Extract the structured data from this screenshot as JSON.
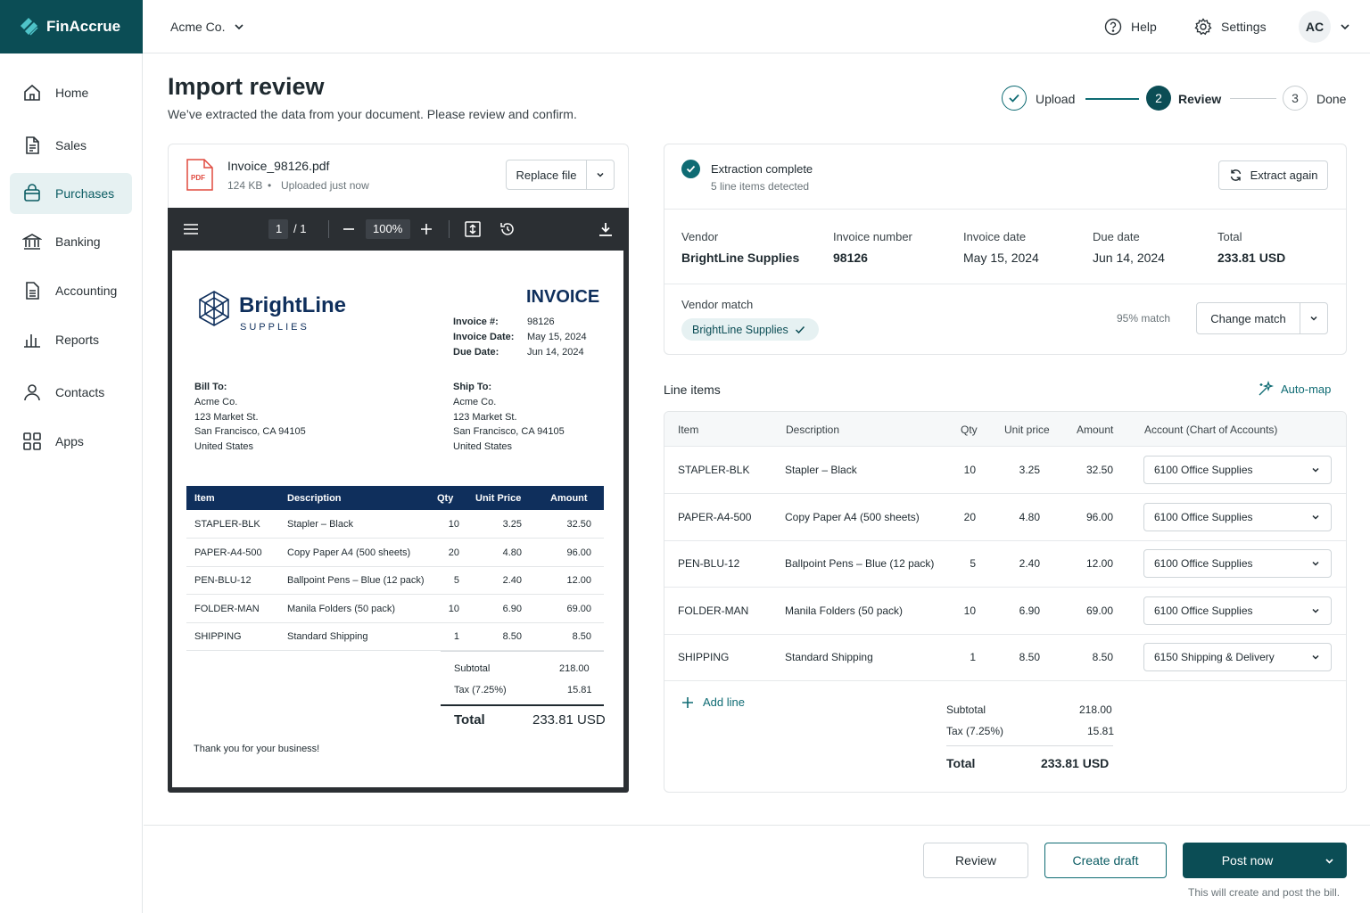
{
  "app": {
    "name": "FinAccrue"
  },
  "topbar": {
    "company": "Acme Co.",
    "help": "Help",
    "settings": "Settings",
    "avatar": "AC"
  },
  "sidebar": {
    "items": [
      {
        "label": "Home",
        "icon": "home-icon"
      },
      {
        "label": "Sales",
        "icon": "document-icon"
      },
      {
        "label": "Purchases",
        "icon": "bag-icon",
        "active": true
      },
      {
        "label": "Banking",
        "icon": "bank-icon"
      },
      {
        "label": "Accounting",
        "icon": "ledger-icon"
      },
      {
        "label": "Reports",
        "icon": "bar-chart-icon"
      },
      {
        "label": "Contacts",
        "icon": "user-icon"
      },
      {
        "label": "Apps",
        "icon": "grid-icon"
      }
    ]
  },
  "page": {
    "title": "Import review",
    "subtitle": "We’ve extracted the data from your document. Please review and confirm."
  },
  "stepper": {
    "steps": [
      {
        "label": "Upload",
        "status": "done"
      },
      {
        "number": "2",
        "label": "Review",
        "status": "current"
      },
      {
        "number": "3",
        "label": "Done",
        "status": "upcoming"
      }
    ]
  },
  "file": {
    "name": "Invoice_98126.pdf",
    "size": "124 KB",
    "separator": "•",
    "uploaded": "Uploaded just now",
    "type_badge": "PDF",
    "replace_label": "Replace file"
  },
  "viewer": {
    "page_current": "1",
    "page_total": "/ 1",
    "zoom": "100%"
  },
  "invoice_doc": {
    "brand": "BrightLine",
    "brand_sub": "SUPPLIES",
    "heading": "INVOICE",
    "meta": [
      {
        "label": "Invoice #:",
        "value": "98126"
      },
      {
        "label": "Invoice Date:",
        "value": "May 15, 2024"
      },
      {
        "label": "Due Date:",
        "value": "Jun 14, 2024"
      }
    ],
    "bill_to": {
      "label": "Bill To:",
      "lines": [
        "Acme Co.",
        "123 Market St.",
        "San Francisco, CA 94105",
        "United States"
      ]
    },
    "ship_to": {
      "label": "Ship To:",
      "lines": [
        "Acme Co.",
        "123 Market St.",
        "San Francisco, CA 94105",
        "United States"
      ]
    },
    "columns": [
      "Item",
      "Description",
      "Qty",
      "Unit Price",
      "Amount"
    ],
    "rows": [
      [
        "STAPLER-BLK",
        "Stapler – Black",
        "10",
        "3.25",
        "32.50"
      ],
      [
        "PAPER-A4-500",
        "Copy Paper A4 (500 sheets)",
        "20",
        "4.80",
        "96.00"
      ],
      [
        "PEN-BLU-12",
        "Ballpoint Pens – Blue (12 pack)",
        "5",
        "2.40",
        "12.00"
      ],
      [
        "FOLDER-MAN",
        "Manila Folders (50 pack)",
        "10",
        "6.90",
        "69.00"
      ],
      [
        "SHIPPING",
        "Standard Shipping",
        "1",
        "8.50",
        "8.50"
      ]
    ],
    "subtotal_label": "Subtotal",
    "subtotal": "218.00",
    "tax_label": "Tax (7.25%)",
    "tax": "15.81",
    "total_label": "Total",
    "total": "233.81 USD",
    "thanks": "Thank you for your business!"
  },
  "extraction": {
    "title": "Extraction complete",
    "detail": "5 line items detected",
    "extract_again": "Extract again",
    "fields": [
      {
        "label": "Vendor",
        "value": "BrightLine Supplies"
      },
      {
        "label": "Invoice number",
        "value": "98126"
      },
      {
        "label": "Invoice date",
        "value": "May 15, 2024"
      },
      {
        "label": "Due date",
        "value": "Jun 14, 2024"
      },
      {
        "label": "Total",
        "value": "233.81 USD"
      }
    ],
    "vendor_match_label": "Vendor match",
    "vendor_match_value": "BrightLine Supplies",
    "match_pct": "95% match",
    "change_match": "Change match"
  },
  "line_items": {
    "title": "Line items",
    "automap": "Auto-map",
    "columns": [
      "Item",
      "Description",
      "Qty",
      "Unit price",
      "Amount",
      "Account (Chart of Accounts)"
    ],
    "rows": [
      {
        "item": "STAPLER-BLK",
        "desc": "Stapler – Black",
        "qty": "10",
        "price": "3.25",
        "amount": "32.50",
        "account": "6100 Office Supplies"
      },
      {
        "item": "PAPER-A4-500",
        "desc": "Copy Paper A4 (500 sheets)",
        "qty": "20",
        "price": "4.80",
        "amount": "96.00",
        "account": "6100 Office Supplies"
      },
      {
        "item": "PEN-BLU-12",
        "desc": "Ballpoint Pens – Blue (12 pack)",
        "qty": "5",
        "price": "2.40",
        "amount": "12.00",
        "account": "6100 Office Supplies"
      },
      {
        "item": "FOLDER-MAN",
        "desc": "Manila Folders (50 pack)",
        "qty": "10",
        "price": "6.90",
        "amount": "69.00",
        "account": "6100 Office Supplies"
      },
      {
        "item": "SHIPPING",
        "desc": "Standard Shipping",
        "qty": "1",
        "price": "8.50",
        "amount": "8.50",
        "account": "6150 Shipping & Delivery"
      }
    ],
    "add_line": "Add line",
    "subtotal_label": "Subtotal",
    "subtotal": "218.00",
    "tax_label": "Tax (7.25%)",
    "tax": "15.81",
    "total_label": "Total",
    "total": "233.81 USD"
  },
  "footer": {
    "review": "Review",
    "create_draft": "Create draft",
    "post_now": "Post now",
    "note": "This will create and post the bill."
  },
  "colors": {
    "brand": "#0b4d55",
    "accent": "#0e6b73",
    "invoice_navy": "#0f2f5c"
  }
}
